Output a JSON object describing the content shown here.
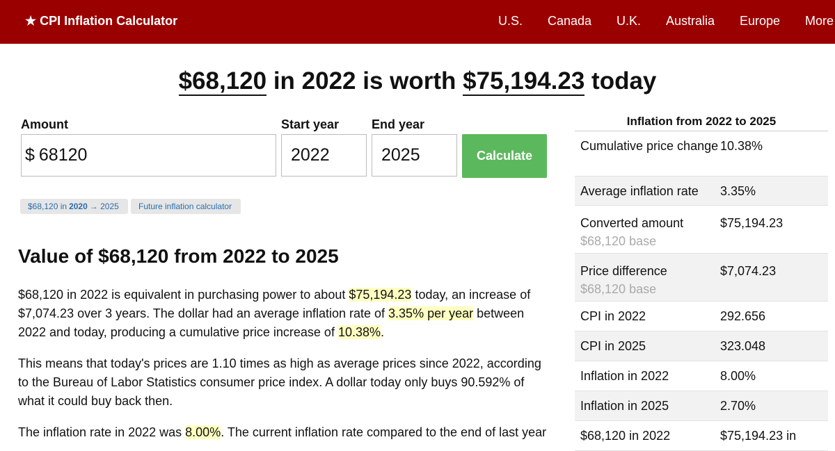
{
  "header": {
    "brand": "★ CPI Inflation Calculator",
    "nav": [
      "U.S.",
      "Canada",
      "U.K.",
      "Australia",
      "Europe",
      "More"
    ]
  },
  "headline": {
    "amount": "$68,120",
    "mid": " in 2022 is worth ",
    "value": "$75,194.23",
    "tail": " today"
  },
  "form": {
    "amount_label": "Amount",
    "start_label": "Start year",
    "end_label": "End year",
    "currency": "$",
    "amount_value": "68120",
    "start_value": "2022",
    "end_value": "2025",
    "calculate_label": "Calculate"
  },
  "links": {
    "pill1_a": "$68,120 in",
    "pill1_b": "2020",
    "pill1_c": "→ 2025",
    "pill2": "Future inflation calculator"
  },
  "section": {
    "title": "Value of $68,120 from 2022 to 2025",
    "p1": [
      "$68,120 in 2022 is equivalent in purchasing power to about ",
      "$75,194.23",
      " today, an increase of $7,074.23 over 3 years. The dollar had an average inflation rate of ",
      "3.35% per year",
      " between 2022 and today, producing a cumulative price increase of ",
      "10.38%",
      "."
    ],
    "p2": "This means that today's prices are 1.10 times as high as average prices since 2022, according to the Bureau of Labor Statistics consumer price index. A dollar today only buys 90.592% of what it could buy back then.",
    "p3": [
      "The inflation rate in 2022 was ",
      "8.00%",
      ". The current inflation rate compared to the end of last year"
    ]
  },
  "sidebar": {
    "title": "Inflation from 2022 to 2025",
    "rows": [
      {
        "k": "Cumulative price change",
        "v": "10.38%"
      },
      {
        "k": "Average inflation rate",
        "v": "3.35%"
      },
      {
        "k": "Converted amount",
        "sub": "$68,120 base",
        "v": "$75,194.23"
      },
      {
        "k": "Price difference",
        "sub": "$68,120 base",
        "v": "$7,074.23"
      },
      {
        "k": "CPI in 2022",
        "v": "292.656"
      },
      {
        "k": "CPI in 2025",
        "v": "323.048"
      },
      {
        "k": "Inflation in 2022",
        "v": "8.00%"
      },
      {
        "k": "Inflation in 2025",
        "v": "2.70%"
      },
      {
        "k": "$68,120 in 2022",
        "v": "$75,194.23 in"
      }
    ]
  }
}
